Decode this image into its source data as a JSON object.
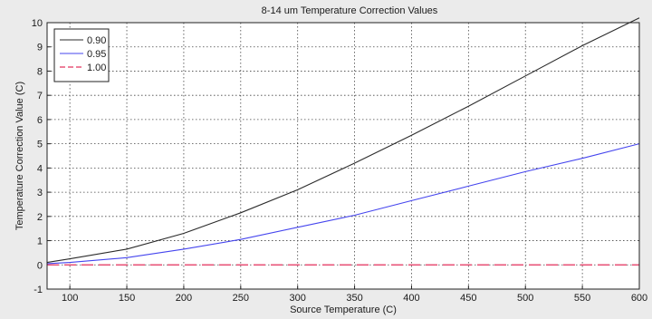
{
  "chart_data": {
    "type": "line",
    "title": "8-14 um Temperature Correction Values",
    "xlabel": "Source Temperature (C)",
    "ylabel": "Temperature Correction Value (C)",
    "xlim": [
      80,
      600
    ],
    "ylim": [
      -1,
      10
    ],
    "xticks": [
      100,
      150,
      200,
      250,
      300,
      350,
      400,
      450,
      500,
      550,
      600
    ],
    "yticks": [
      -1,
      0,
      1,
      2,
      3,
      4,
      5,
      6,
      7,
      8,
      9,
      10
    ],
    "grid": true,
    "legend_position": "top-left",
    "series": [
      {
        "name": "0.90",
        "color": "#2b2b2b",
        "dash": "solid",
        "x": [
          80,
          100,
          150,
          200,
          250,
          300,
          350,
          400,
          450,
          500,
          550,
          600
        ],
        "y": [
          0.1,
          0.25,
          0.65,
          1.3,
          2.15,
          3.1,
          4.2,
          5.35,
          6.55,
          7.8,
          9.05,
          10.2
        ]
      },
      {
        "name": "0.95",
        "color": "#4545ee",
        "dash": "solid",
        "x": [
          80,
          100,
          150,
          200,
          250,
          300,
          350,
          400,
          450,
          500,
          550,
          600
        ],
        "y": [
          0.05,
          0.1,
          0.3,
          0.65,
          1.05,
          1.55,
          2.05,
          2.65,
          3.25,
          3.85,
          4.4,
          5.0
        ]
      },
      {
        "name": "1.00",
        "color": "#e8567a",
        "dash": "dashed",
        "x": [
          80,
          600
        ],
        "y": [
          0,
          0
        ]
      }
    ]
  }
}
